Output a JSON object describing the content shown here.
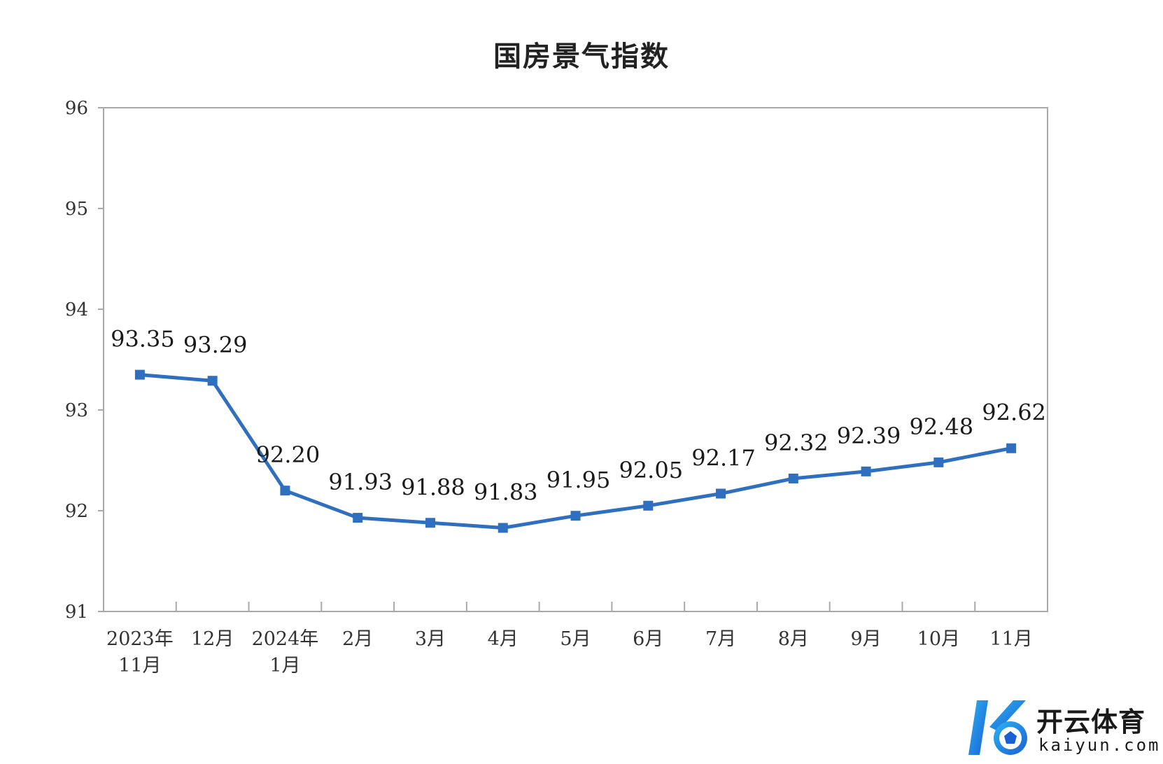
{
  "chart_data": {
    "type": "line",
    "title": "国房景气指数",
    "categories": [
      [
        "2023年",
        "11月"
      ],
      [
        "12月"
      ],
      [
        "2024年",
        "1月"
      ],
      [
        "2月"
      ],
      [
        "3月"
      ],
      [
        "4月"
      ],
      [
        "5月"
      ],
      [
        "6月"
      ],
      [
        "7月"
      ],
      [
        "8月"
      ],
      [
        "9月"
      ],
      [
        "10月"
      ],
      [
        "11月"
      ]
    ],
    "series": [
      {
        "values": [
          93.35,
          93.29,
          92.2,
          91.93,
          91.88,
          91.83,
          91.95,
          92.05,
          92.17,
          92.32,
          92.39,
          92.48,
          92.62
        ],
        "labels": [
          "93.35",
          "93.29",
          "92.20",
          "91.93",
          "91.88",
          "91.83",
          "91.95",
          "92.05",
          "92.17",
          "92.32",
          "92.39",
          "92.48",
          "92.62"
        ],
        "color": "#2f6fbf"
      }
    ],
    "ylim": [
      91,
      96
    ],
    "yticks": [
      "91",
      "92",
      "93",
      "94",
      "95",
      "96"
    ],
    "xlabel": "",
    "ylabel": "",
    "grid": false,
    "legend": "none"
  },
  "watermark": {
    "brand": "开云体育",
    "domain": "kaiyun.com"
  }
}
